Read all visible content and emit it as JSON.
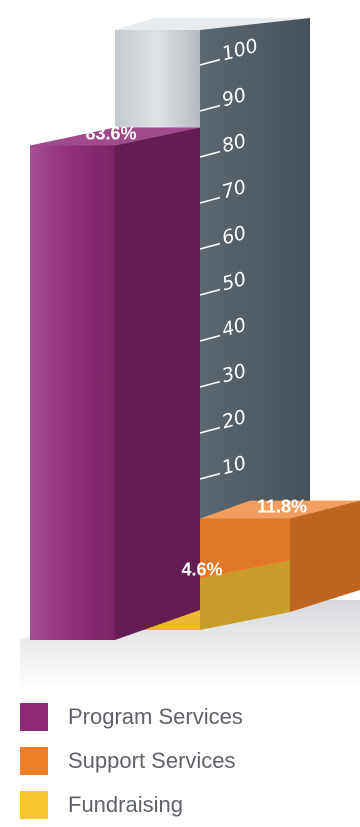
{
  "chart_data": {
    "type": "bar",
    "categories": [
      "Program Services",
      "Support Services",
      "Fundraising"
    ],
    "values": [
      83.6,
      11.8,
      4.6
    ],
    "value_labels": [
      "83.6%",
      "11.8%",
      "4.6%"
    ],
    "ylim": [
      0,
      100
    ],
    "yticks": [
      10,
      20,
      30,
      40,
      50,
      60,
      70,
      80,
      90,
      100
    ],
    "ytick_labels": [
      "10",
      "20",
      "30",
      "40",
      "50",
      "60",
      "70",
      "80",
      "90",
      "100"
    ],
    "grid": false,
    "legend_position": "bottom",
    "legend": [
      {
        "label": "Program Services",
        "color": "#8e2a78"
      },
      {
        "label": "Support Services",
        "color": "#ef7e2a"
      },
      {
        "label": "Fundraising",
        "color": "#f9c332"
      }
    ],
    "axis_column_color": "#55606a"
  }
}
